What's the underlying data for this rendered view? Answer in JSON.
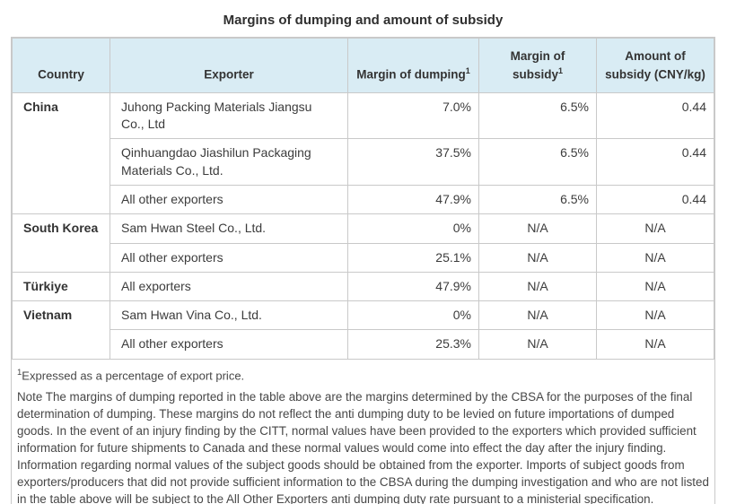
{
  "title": "Margins of dumping and amount of subsidy",
  "colors": {
    "header_bg": "#d9ecf4",
    "border": "#c9c9c9",
    "text": "#3c3c3c"
  },
  "table": {
    "columns": [
      {
        "label": "Country",
        "sup": ""
      },
      {
        "label": "Exporter",
        "sup": ""
      },
      {
        "label": "Margin of dumping",
        "sup": "1"
      },
      {
        "label": "Margin of subsidy",
        "sup": "1"
      },
      {
        "label": "Amount of subsidy (CNY/kg)",
        "sup": ""
      }
    ],
    "groups": [
      {
        "country": "China",
        "rows": [
          {
            "exporter": "Juhong Packing Materials Jiangsu Co., Ltd",
            "margin_dumping": "7.0%",
            "margin_subsidy": "6.5%",
            "amount_subsidy": "0.44"
          },
          {
            "exporter": "Qinhuangdao Jiashilun Packaging Materials Co., Ltd.",
            "margin_dumping": "37.5%",
            "margin_subsidy": "6.5%",
            "amount_subsidy": "0.44"
          },
          {
            "exporter": "All other exporters",
            "margin_dumping": "47.9%",
            "margin_subsidy": "6.5%",
            "amount_subsidy": "0.44"
          }
        ]
      },
      {
        "country": "South Korea",
        "rows": [
          {
            "exporter": "Sam Hwan Steel Co., Ltd.",
            "margin_dumping": "0%",
            "margin_subsidy": "N/A",
            "amount_subsidy": "N/A"
          },
          {
            "exporter": "All other exporters",
            "margin_dumping": "25.1%",
            "margin_subsidy": "N/A",
            "amount_subsidy": "N/A"
          }
        ]
      },
      {
        "country": "Türkiye",
        "rows": [
          {
            "exporter": "All exporters",
            "margin_dumping": "47.9%",
            "margin_subsidy": "N/A",
            "amount_subsidy": "N/A"
          }
        ]
      },
      {
        "country": "Vietnam",
        "rows": [
          {
            "exporter": "Sam Hwan Vina Co., Ltd.",
            "margin_dumping": "0%",
            "margin_subsidy": "N/A",
            "amount_subsidy": "N/A"
          },
          {
            "exporter": "All other exporters",
            "margin_dumping": "25.3%",
            "margin_subsidy": "N/A",
            "amount_subsidy": "N/A"
          }
        ]
      }
    ]
  },
  "footnote": {
    "marker": "1",
    "text": "Expressed as a percentage of export price."
  },
  "note": "Note The margins of dumping reported in the table above are the margins determined by the CBSA for the purposes of the final determination of dumping. These margins do not reflect the anti dumping duty to be levied on future importations of dumped goods. In the event of an injury finding by the CITT, normal values have been provided to the exporters which provided sufficient information for future shipments to Canada and these normal values would come into effect the day after the injury finding. Information regarding normal values of the subject goods should be obtained from the exporter. Imports of subject goods from exporters/producers that did not provide sufficient information to the CBSA during the dumping investigation and who are not listed in the table above will be subject to the All Other Exporters anti dumping duty rate pursuant to a ministerial specification."
}
